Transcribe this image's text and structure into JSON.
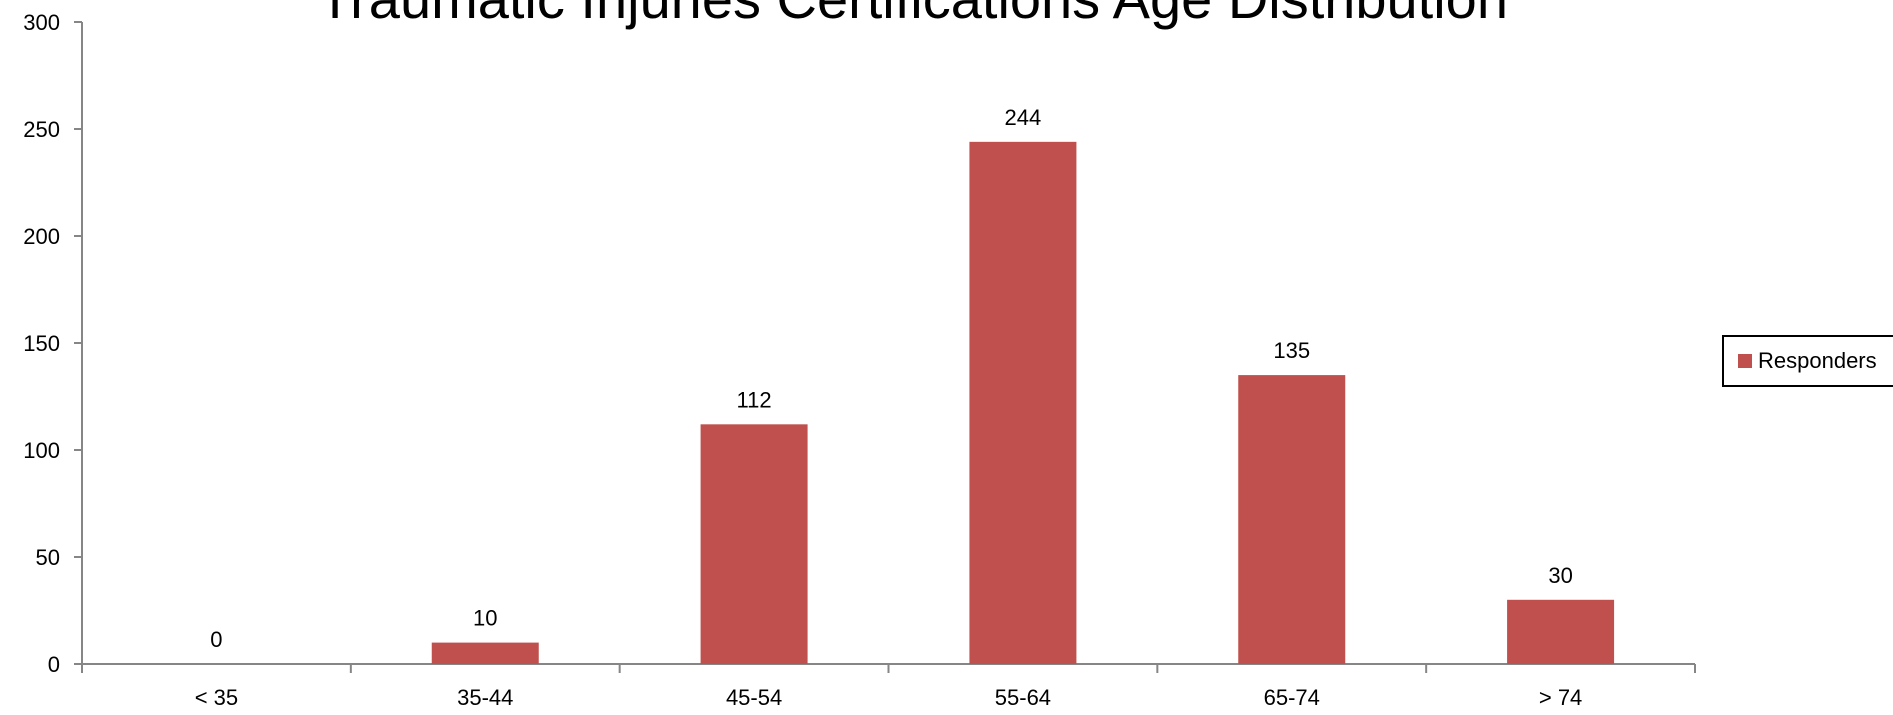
{
  "chart_data": {
    "type": "bar",
    "title": "Traumatic Injuries Certifications Age Distribution",
    "xlabel": "",
    "ylabel": "",
    "categories": [
      "< 35",
      "35-44",
      "45-54",
      "55-64",
      "65-74",
      "> 74"
    ],
    "series": [
      {
        "name": "Responders",
        "values": [
          0,
          10,
          112,
          244,
          135,
          30
        ],
        "color": "#c0504d"
      }
    ],
    "ylim": [
      0,
      300
    ],
    "yticks": [
      0,
      50,
      100,
      150,
      200,
      250,
      300
    ],
    "data_labels": true,
    "grid": false,
    "legend": {
      "position": "right"
    }
  }
}
